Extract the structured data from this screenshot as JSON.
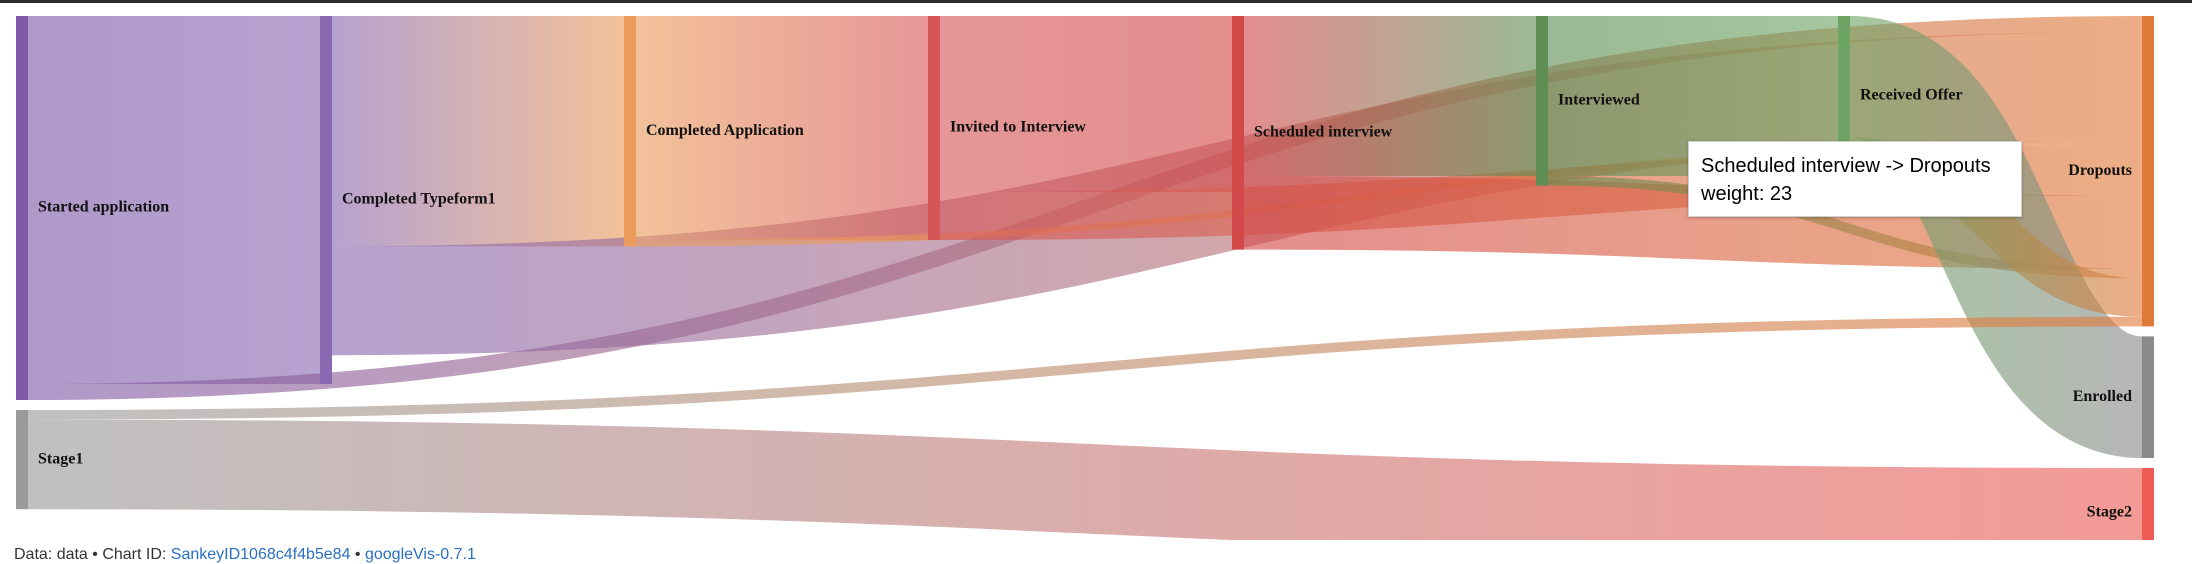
{
  "footer": {
    "data_label": "Data: data",
    "sep1": " • Chart ID: ",
    "chart_id": "SankeyID1068c4f4b5e84",
    "sep2": " • ",
    "package": "googleVis-0.7.1"
  },
  "tooltip": {
    "line1": "Scheduled interview -> Dropouts",
    "line2": "weight: 23"
  },
  "chart_data": {
    "type": "sankey",
    "title": "",
    "nodes": [
      {
        "name": "Started application",
        "color": "#7f5aa8",
        "column": 0
      },
      {
        "name": "Completed Typeform1",
        "color": "#8a68b2",
        "column": 1
      },
      {
        "name": "Completed Application",
        "color": "#eb9c5c",
        "column": 2
      },
      {
        "name": "Invited to Interview",
        "color": "#d65656",
        "column": 3
      },
      {
        "name": "Scheduled interview",
        "color": "#d34848",
        "column": 4
      },
      {
        "name": "Interviewed",
        "color": "#5e8e52",
        "column": 5
      },
      {
        "name": "Received Offer",
        "color": "#6ea464",
        "column": 6
      },
      {
        "name": "Dropouts",
        "color": "#e07a3a",
        "column": 7
      },
      {
        "name": "Enrolled",
        "color": "#8a8a8a",
        "column": 7
      },
      {
        "name": "Stage1",
        "color": "#9a9a9a",
        "column": 0
      },
      {
        "name": "Stage2",
        "color": "#ee5c56",
        "column": 7
      }
    ],
    "links": [
      {
        "source": "Started application",
        "target": "Completed Typeform1",
        "value": 115
      },
      {
        "source": "Started application",
        "target": "Dropouts",
        "value": 5
      },
      {
        "source": "Completed Typeform1",
        "target": "Completed Application",
        "value": 72
      },
      {
        "source": "Completed Typeform1",
        "target": "Dropouts",
        "value": 34
      },
      {
        "source": "Completed Application",
        "target": "Invited to Interview",
        "value": 70
      },
      {
        "source": "Completed Application",
        "target": "Dropouts",
        "value": 2
      },
      {
        "source": "Invited to Interview",
        "target": "Scheduled interview",
        "value": 55
      },
      {
        "source": "Invited to Interview",
        "target": "Dropouts",
        "value": 15
      },
      {
        "source": "Scheduled interview",
        "target": "Interviewed",
        "value": 50
      },
      {
        "source": "Scheduled interview",
        "target": "Dropouts",
        "value": 23
      },
      {
        "source": "Interviewed",
        "target": "Received Offer",
        "value": 50
      },
      {
        "source": "Interviewed",
        "target": "Dropouts",
        "value": 3
      },
      {
        "source": "Received Offer",
        "target": "Enrolled",
        "value": 38
      },
      {
        "source": "Received Offer",
        "target": "Dropouts",
        "value": 12
      },
      {
        "source": "Stage1",
        "target": "Dropouts",
        "value": 3
      },
      {
        "source": "Stage1",
        "target": "Stage2",
        "value": 28
      }
    ]
  }
}
